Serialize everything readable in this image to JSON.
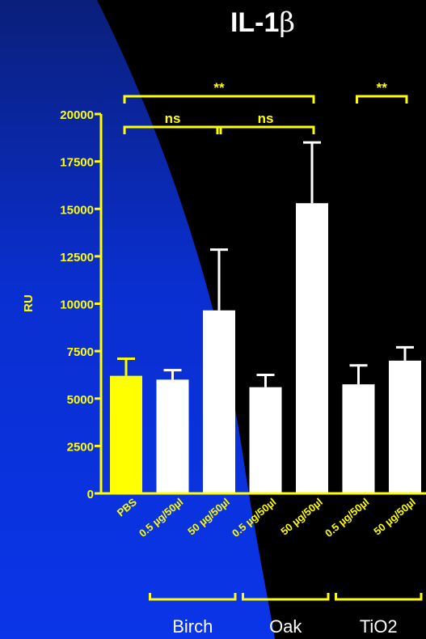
{
  "colors": {
    "background": "#000000",
    "blue_panel": "#0a2fd0",
    "axis": "#ffff00",
    "pbs_bar": "#ffff00",
    "bar": "#ffffff",
    "label": "#ffff00",
    "group_label": "#ffffff"
  },
  "chart_data": {
    "type": "bar",
    "title_main": "IL-1",
    "title_symbol": "β",
    "ylabel": "RU",
    "ylim": [
      0,
      20000
    ],
    "yticks": [
      0,
      2500,
      5000,
      7500,
      10000,
      12500,
      15000,
      17500,
      20000
    ],
    "categories": [
      "PBS",
      "0.5 µg/50µl",
      "50 µg/50µl",
      "0.5 µg/50µl",
      "50 µg/50µl",
      "0.5 µg/50µl",
      "50 µg/50µl"
    ],
    "values": [
      6200,
      6000,
      9650,
      5600,
      15300,
      5750,
      7000
    ],
    "errors": [
      900,
      500,
      3200,
      650,
      3200,
      1000,
      700
    ],
    "groups": [
      {
        "name": "Birch",
        "from": 1,
        "to": 2
      },
      {
        "name": "Oak",
        "from": 3,
        "to": 4
      },
      {
        "name": "TiO2",
        "from": 5,
        "to": 6
      }
    ],
    "significance": [
      {
        "label": "**",
        "from": 0,
        "to": 4,
        "level": 2
      },
      {
        "label": "**",
        "from": 5,
        "to": 6,
        "level": 2
      },
      {
        "label": "ns",
        "from": 0,
        "to": 2,
        "level": 1
      },
      {
        "label": "ns",
        "from": 2,
        "to": 4,
        "level": 1
      }
    ]
  }
}
